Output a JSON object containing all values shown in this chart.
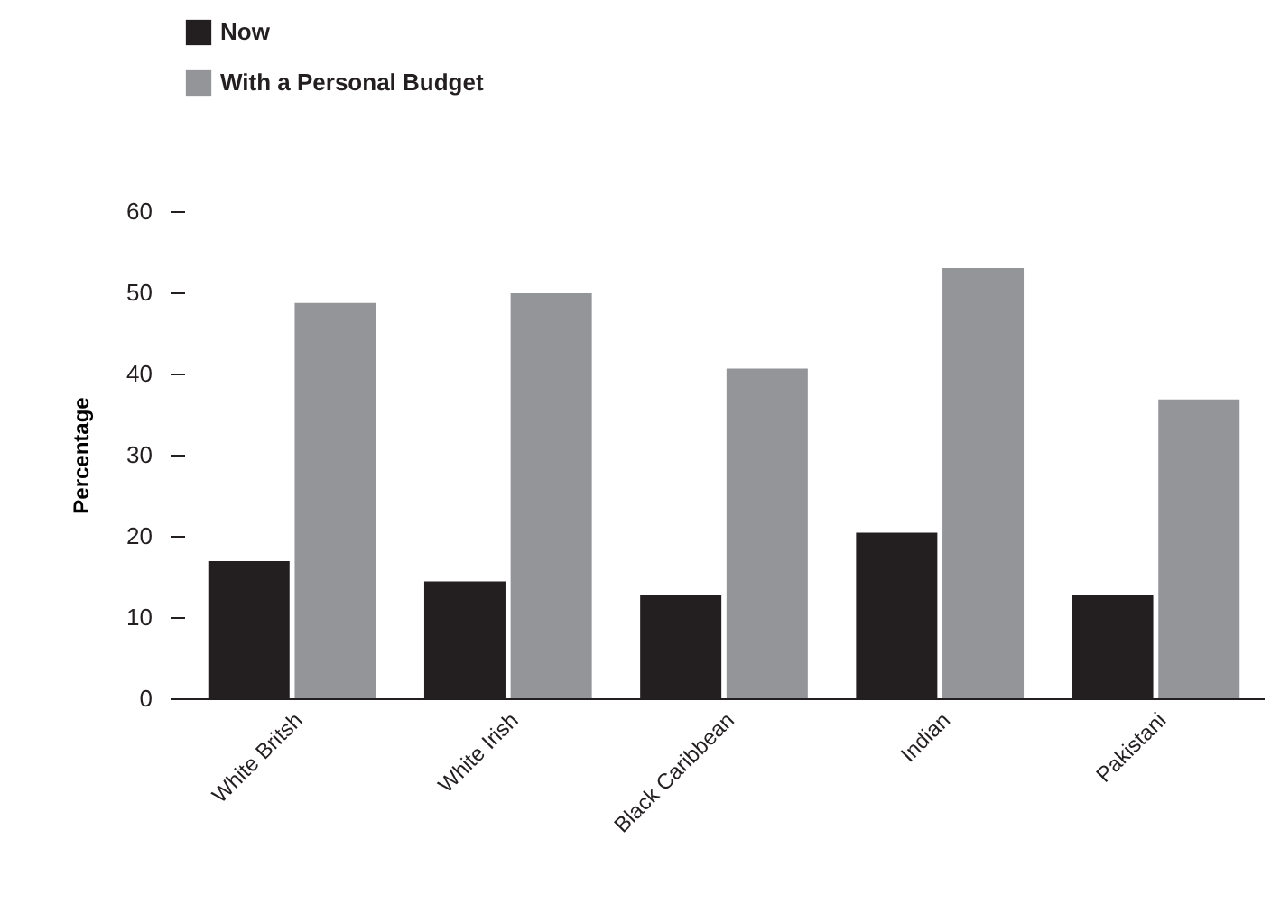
{
  "chart_data": {
    "type": "bar",
    "ylabel": "Percentage",
    "categories": [
      "White Britsh",
      "White Irish",
      "Black Caribbean",
      "Indian",
      "Pakistani"
    ],
    "series": [
      {
        "name": "Now",
        "color": "#231f20",
        "values": [
          16.9,
          14.4,
          12.7,
          20.4,
          12.7
        ]
      },
      {
        "name": "With a Personal Budget",
        "color": "#939598",
        "values": [
          48.7,
          49.9,
          40.6,
          53,
          36.8
        ]
      }
    ],
    "ylim": [
      0,
      60
    ],
    "yticks": [
      0,
      10,
      20,
      30,
      40,
      50,
      60
    ],
    "grid": false,
    "legend": "top left"
  }
}
